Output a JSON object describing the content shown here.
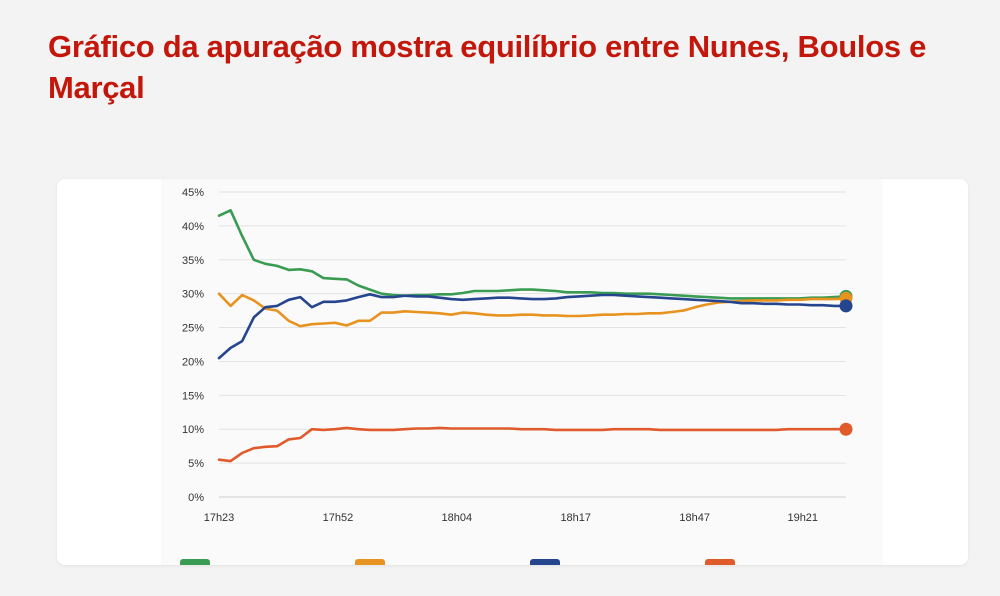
{
  "article": {
    "headline": "Gráfico da apuração mostra equilíbrio entre Nunes, Boulos e Marçal"
  },
  "chart_data": {
    "type": "line",
    "title": "",
    "xlabel": "",
    "ylabel": "",
    "ylim": [
      0,
      45
    ],
    "y_ticks": [
      0,
      5,
      10,
      15,
      20,
      25,
      30,
      35,
      40,
      45
    ],
    "y_tick_labels": [
      "0%",
      "5%",
      "10%",
      "15%",
      "20%",
      "25%",
      "30%",
      "35%",
      "40%",
      "45%"
    ],
    "x_range": [
      0,
      58
    ],
    "x_tick_positions": [
      0,
      11,
      22,
      33,
      44,
      54
    ],
    "x_tick_labels": [
      "17h23",
      "17h52",
      "18h04",
      "18h17",
      "18h47",
      "19h21"
    ],
    "grid": true,
    "series": [
      {
        "name": "",
        "color": "#3a9b52",
        "values": [
          41.5,
          42.3,
          38.5,
          35,
          34.4,
          34.1,
          33.5,
          33.6,
          33.3,
          32.3,
          32.2,
          32.1,
          31.2,
          30.6,
          30,
          29.8,
          29.7,
          29.8,
          29.8,
          29.9,
          29.9,
          30.1,
          30.4,
          30.4,
          30.4,
          30.5,
          30.6,
          30.6,
          30.5,
          30.4,
          30.2,
          30.2,
          30.2,
          30.1,
          30.1,
          30,
          30,
          30,
          29.9,
          29.8,
          29.7,
          29.6,
          29.5,
          29.4,
          29.3,
          29.3,
          29.3,
          29.3,
          29.3,
          29.3,
          29.3,
          29.4,
          29.4,
          29.5,
          29.6
        ]
      },
      {
        "name": "",
        "color": "#e8931f",
        "values": [
          30,
          28.2,
          29.8,
          29,
          27.8,
          27.5,
          26,
          25.2,
          25.5,
          25.6,
          25.7,
          25.3,
          26,
          26,
          27.2,
          27.2,
          27.4,
          27.3,
          27.2,
          27.1,
          26.9,
          27.2,
          27.1,
          26.9,
          26.8,
          26.8,
          26.9,
          26.9,
          26.8,
          26.8,
          26.7,
          26.7,
          26.8,
          26.9,
          26.9,
          27,
          27,
          27.1,
          27.1,
          27.3,
          27.5,
          28,
          28.4,
          28.7,
          28.8,
          28.9,
          29,
          29,
          29,
          29.1,
          29.1,
          29.2,
          29.2,
          29.2,
          29.3
        ]
      },
      {
        "name": "",
        "color": "#25458f",
        "values": [
          20.5,
          22,
          23,
          26.5,
          28,
          28.2,
          29.1,
          29.5,
          28,
          28.8,
          28.8,
          29,
          29.5,
          29.9,
          29.5,
          29.5,
          29.7,
          29.6,
          29.6,
          29.4,
          29.2,
          29.1,
          29.2,
          29.3,
          29.4,
          29.4,
          29.3,
          29.2,
          29.2,
          29.3,
          29.5,
          29.6,
          29.7,
          29.8,
          29.8,
          29.7,
          29.6,
          29.5,
          29.4,
          29.3,
          29.2,
          29.1,
          29,
          28.9,
          28.8,
          28.6,
          28.6,
          28.5,
          28.5,
          28.4,
          28.4,
          28.3,
          28.3,
          28.2,
          28.2
        ]
      },
      {
        "name": "",
        "color": "#e05a2b",
        "values": [
          5.5,
          5.3,
          6.5,
          7.2,
          7.4,
          7.5,
          8.5,
          8.7,
          10,
          9.9,
          10,
          10.2,
          10,
          9.9,
          9.9,
          9.9,
          10,
          10.1,
          10.1,
          10.2,
          10.1,
          10.1,
          10.1,
          10.1,
          10.1,
          10.1,
          10,
          10,
          10,
          9.9,
          9.9,
          9.9,
          9.9,
          9.9,
          10,
          10,
          10,
          10,
          9.9,
          9.9,
          9.9,
          9.9,
          9.9,
          9.9,
          9.9,
          9.9,
          9.9,
          9.9,
          9.9,
          10,
          10,
          10,
          10,
          10,
          10
        ]
      }
    ]
  }
}
